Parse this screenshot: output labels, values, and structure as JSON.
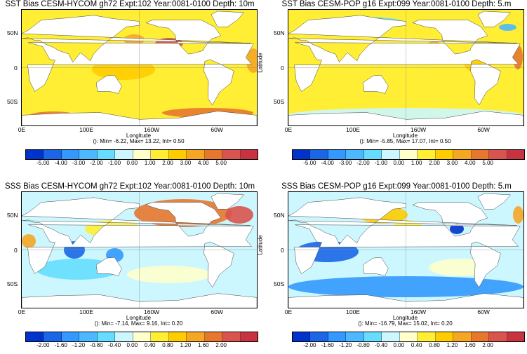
{
  "panels": [
    {
      "id": "p1",
      "title": "SST Bias CESM-HYCOM gh72 Expt:102 Year:0081-0100 Depth:  10m",
      "stats": "(): Min= -6.22, Max= 13.22, Int= 0.50",
      "ticks": [
        "-5.00",
        "-4.00",
        "-3.00",
        "-2.00",
        "-1.00",
        "0.00",
        "1.00",
        "2.00",
        "3.00",
        "4.00",
        "5.00"
      ]
    },
    {
      "id": "p2",
      "title": "SST Bias CESM-POP g16 Expt:099 Year:0081-0100 Depth:   5.m",
      "stats": "(): Min= -5.85, Max= 17.07, Int= 0.50",
      "ticks": [
        "-5.00",
        "-4.00",
        "-3.00",
        "-2.00",
        "-1.00",
        "0.00",
        "1.00",
        "2.00",
        "3.00",
        "4.00",
        "5.00"
      ]
    },
    {
      "id": "p3",
      "title": "SSS Bias CESM-HYCOM gh72 Expt:102 Year:0081-0100 Depth:  10m",
      "stats": "(): Min= -7.14, Max= 9.16, Int= 0.20",
      "ticks": [
        "-2.00",
        "-1.60",
        "-1.20",
        "-0.80",
        "-0.40",
        "0.00",
        "0.40",
        "0.80",
        "1.20",
        "1.60",
        "2.00"
      ]
    },
    {
      "id": "p4",
      "title": "SSS Bias CESM-POP g16 Expt:099 Year:0081-0100 Depth:   5.m",
      "stats": "(): Min= -16.79, Max= 15.02, Int= 0.20",
      "ticks": [
        "-2.00",
        "-1.60",
        "-1.20",
        "-0.80",
        "-0.40",
        "0.00",
        "0.40",
        "0.80",
        "1.20",
        "1.60",
        "2.00"
      ]
    }
  ],
  "axes": {
    "ylabel": "Latitude",
    "xlabel": "Longitude",
    "yticks": [
      "50N",
      "0",
      "50S"
    ],
    "xticks": [
      "0E",
      "100E",
      "160W",
      "60W"
    ]
  },
  "colorbar_colors": [
    "#0033cc",
    "#1a66e6",
    "#3399ff",
    "#4db8ff",
    "#66ddff",
    "#ccf7ff",
    "#ffffcc",
    "#ffee33",
    "#ffcc00",
    "#f5a623",
    "#e8772e",
    "#d9534f",
    "#c83241"
  ],
  "chart_data": [
    {
      "type": "heatmap",
      "title": "SST Bias CESM-HYCOM gh72 Expt:102 Year:0081-0100 Depth:  10m",
      "xlabel": "Longitude",
      "ylabel": "Latitude",
      "colorbar_range": [
        -5,
        5
      ],
      "colorbar_interval": 1,
      "min": -6.22,
      "max": 13.22,
      "contour_interval": 0.5
    },
    {
      "type": "heatmap",
      "title": "SST Bias CESM-POP g16 Expt:099 Year:0081-0100 Depth:   5.m",
      "xlabel": "Longitude",
      "ylabel": "Latitude",
      "colorbar_range": [
        -5,
        5
      ],
      "colorbar_interval": 1,
      "min": -5.85,
      "max": 17.07,
      "contour_interval": 0.5
    },
    {
      "type": "heatmap",
      "title": "SSS Bias CESM-HYCOM gh72 Expt:102 Year:0081-0100 Depth:  10m",
      "xlabel": "Longitude",
      "ylabel": "Latitude",
      "colorbar_range": [
        -2,
        2
      ],
      "colorbar_interval": 0.4,
      "min": -7.14,
      "max": 9.16,
      "contour_interval": 0.2
    },
    {
      "type": "heatmap",
      "title": "SSS Bias CESM-POP g16 Expt:099 Year:0081-0100 Depth:   5.m",
      "xlabel": "Longitude",
      "ylabel": "Latitude",
      "colorbar_range": [
        -2,
        2
      ],
      "colorbar_interval": 0.4,
      "min": -16.79,
      "max": 15.02,
      "contour_interval": 0.2
    }
  ]
}
